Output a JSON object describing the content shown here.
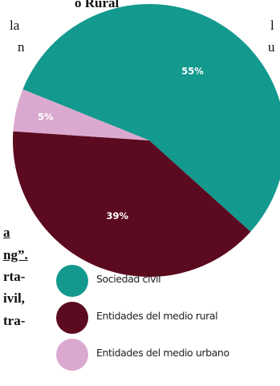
{
  "document": {
    "lines": [
      {
        "text": "o Rural",
        "bold": true,
        "underline": false
      },
      {
        "text": "la",
        "bold": false,
        "underline": false
      },
      {
        "text": "n",
        "bold": false,
        "underline": false
      },
      {
        "text": "l",
        "bold": false,
        "underline": false
      },
      {
        "text": "u",
        "bold": false,
        "underline": false
      },
      {
        "text": "a",
        "bold": true,
        "underline": true
      },
      {
        "text": "ng”.",
        "bold": true,
        "underline": true
      },
      {
        "text": "rta-",
        "bold": true,
        "underline": false
      },
      {
        "text": "ivil,",
        "bold": true,
        "underline": false
      },
      {
        "text": "tra-",
        "bold": true,
        "underline": false
      }
    ]
  },
  "chart_data": {
    "type": "pie",
    "title": "",
    "slices": [
      {
        "label": "Sociedad civil",
        "value": 55,
        "display": "55%",
        "color": "#14998f"
      },
      {
        "label": "Entidades del medio rural",
        "value": 39,
        "display": "39%",
        "color": "#5b0a20"
      },
      {
        "label": "Entidades del medio urbano",
        "value": 5,
        "display": "5%",
        "color": "#dba9cf"
      }
    ],
    "legend_position": "bottom"
  }
}
